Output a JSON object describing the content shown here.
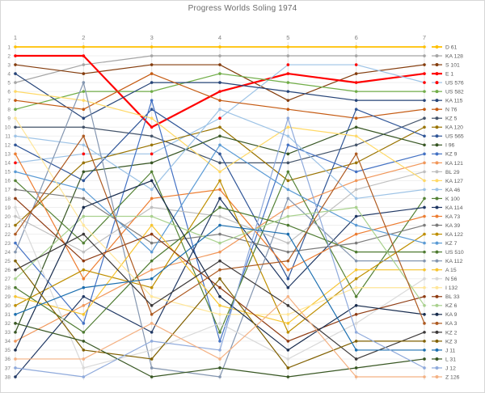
{
  "page": {
    "background_color": "#FFFFFF",
    "border_color": "#D7D7D7",
    "title_color": "#6A6A6A",
    "axis_label_color": "#808080",
    "legend_text_color": "#595959",
    "gridline_color_h": "#EFEFEF",
    "gridline_color_v": "#E4E4E4"
  },
  "chart_data": {
    "type": "line",
    "subtype": "bump-rank-chart",
    "title": "Progress Worlds Soling 1974",
    "xlabel": "",
    "ylabel": "",
    "grid": true,
    "legend_position": "right",
    "x_categories": [
      "1",
      "2",
      "3",
      "4",
      "5",
      "6",
      "7"
    ],
    "y_tick_labels": [
      "1",
      "2",
      "3",
      "4",
      "5",
      "6",
      "7",
      "8",
      "9",
      "10",
      "11",
      "12",
      "13",
      "14",
      "15",
      "16",
      "17",
      "18",
      "19",
      "20",
      "21",
      "22",
      "23",
      "24",
      "25",
      "26",
      "27",
      "28",
      "29",
      "30",
      "31",
      "32",
      "33",
      "34",
      "35",
      "36",
      "37",
      "38"
    ],
    "y_range": [
      1,
      38
    ],
    "y_inverted": true,
    "series": [
      {
        "name": "D 61",
        "color": "#FFC000",
        "width": 1.8,
        "positions": [
          1,
          1,
          1,
          1,
          1,
          1,
          1
        ]
      },
      {
        "name": "KA 128",
        "color": "#A5A5A5",
        "positions": [
          5,
          3,
          2,
          2,
          2,
          2,
          2
        ]
      },
      {
        "name": "S 101",
        "color": "#843C0C",
        "positions": [
          3,
          4,
          3,
          3,
          7,
          4,
          3
        ]
      },
      {
        "name": "E 1",
        "color": "#FF0000",
        "width": 2.2,
        "positions": [
          2,
          2,
          10,
          6,
          4,
          5,
          4
        ]
      },
      {
        "name": "US 576",
        "color": "#9DC3E6",
        "marker_color": "#FF0000",
        "positions": [
          14,
          13,
          13,
          9,
          3,
          3,
          5
        ]
      },
      {
        "name": "US 582",
        "color": "#70AD47",
        "positions": [
          8,
          6,
          6,
          4,
          5,
          6,
          6
        ]
      },
      {
        "name": "KA 115",
        "color": "#264478",
        "positions": [
          4,
          9,
          5,
          5,
          6,
          7,
          7
        ]
      },
      {
        "name": "N 76",
        "color": "#C55A11",
        "positions": [
          7,
          8,
          4,
          7,
          8,
          9,
          8
        ]
      },
      {
        "name": "KZ 5",
        "color": "#44546A",
        "positions": [
          10,
          10,
          11,
          14,
          14,
          12,
          9
        ]
      },
      {
        "name": "KA 120",
        "color": "#997300",
        "positions": [
          21,
          14,
          12,
          10,
          16,
          14,
          10
        ]
      },
      {
        "name": "US 565",
        "color": "#2F5597",
        "positions": [
          12,
          16,
          8,
          13,
          27,
          8,
          11
        ]
      },
      {
        "name": "I 96",
        "color": "#375623",
        "positions": [
          33,
          15,
          14,
          11,
          13,
          10,
          12
        ]
      },
      {
        "name": "KZ 9",
        "color": "#4472C4",
        "positions": [
          23,
          32,
          7,
          34,
          12,
          15,
          13
        ]
      },
      {
        "name": "KA 121",
        "color": "#F1975A",
        "positions": [
          34,
          30,
          26,
          24,
          19,
          16,
          14
        ]
      },
      {
        "name": "BL 29",
        "color": "#BFBFBF",
        "positions": [
          20,
          24,
          19,
          20,
          23,
          17,
          15
        ]
      },
      {
        "name": "KA 127",
        "color": "#FFD966",
        "positions": [
          6,
          7,
          9,
          15,
          10,
          11,
          16
        ]
      },
      {
        "name": "KA 46",
        "color": "#9DC3E6",
        "positions": [
          11,
          12,
          17,
          8,
          11,
          18,
          17
        ]
      },
      {
        "name": "K 100",
        "color": "#548235",
        "positions": [
          16,
          23,
          15,
          33,
          15,
          29,
          18
        ]
      },
      {
        "name": "KA 114",
        "color": "#203864",
        "positions": [
          38,
          29,
          33,
          18,
          28,
          20,
          19
        ]
      },
      {
        "name": "KA 73",
        "color": "#ED7D31",
        "positions": [
          13,
          27,
          18,
          17,
          26,
          22,
          20
        ]
      },
      {
        "name": "KA 39",
        "color": "#7B7B7B",
        "positions": [
          17,
          18,
          23,
          22,
          24,
          23,
          21
        ]
      },
      {
        "name": "KA 122",
        "color": "#BF8F00",
        "positions": [
          30,
          26,
          28,
          16,
          33,
          27,
          22
        ]
      },
      {
        "name": "KZ 7",
        "color": "#5B9BD5",
        "positions": [
          15,
          17,
          24,
          12,
          17,
          21,
          23
        ]
      },
      {
        "name": "US 510",
        "color": "#4E7B31",
        "positions": [
          28,
          33,
          25,
          19,
          21,
          24,
          24
        ]
      },
      {
        "name": "KA 112",
        "color": "#8496B0",
        "positions": [
          24,
          5,
          37,
          38,
          18,
          25,
          25
        ]
      },
      {
        "name": "A 15",
        "color": "#F7C531",
        "positions": [
          29,
          31,
          21,
          30,
          32,
          26,
          26
        ]
      },
      {
        "name": "N 56",
        "color": "#D9D9D9",
        "positions": [
          19,
          37,
          35,
          32,
          36,
          32,
          27
        ]
      },
      {
        "name": "I 132",
        "color": "#FFE699",
        "positions": [
          9,
          21,
          29,
          31,
          31,
          28,
          28
        ]
      },
      {
        "name": "BL 33",
        "color": "#8F3B12",
        "positions": [
          18,
          25,
          22,
          28,
          34,
          31,
          29
        ]
      },
      {
        "name": "KZ 6",
        "color": "#A9D18E",
        "positions": [
          27,
          20,
          20,
          23,
          20,
          19,
          30
        ]
      },
      {
        "name": "KA 9",
        "color": "#172B4D",
        "positions": [
          35,
          19,
          16,
          29,
          35,
          30,
          31
        ]
      },
      {
        "name": "KA 3",
        "color": "#AE5A21",
        "positions": [
          22,
          11,
          31,
          26,
          25,
          13,
          32
        ]
      },
      {
        "name": "KZ 2",
        "color": "#3B3838",
        "positions": [
          26,
          22,
          30,
          25,
          30,
          36,
          33
        ]
      },
      {
        "name": "KZ 3",
        "color": "#806000",
        "positions": [
          25,
          35,
          36,
          27,
          37,
          34,
          34
        ]
      },
      {
        "name": "J 11",
        "color": "#1C6FB0",
        "positions": [
          31,
          28,
          27,
          21,
          22,
          35,
          35
        ]
      },
      {
        "name": "L 31",
        "color": "#385723",
        "positions": [
          32,
          34,
          38,
          37,
          38,
          37,
          36
        ]
      },
      {
        "name": "J 12",
        "color": "#8FAADC",
        "positions": [
          37,
          38,
          34,
          35,
          9,
          33,
          37
        ]
      },
      {
        "name": "Z 126",
        "color": "#F4B183",
        "positions": [
          36,
          36,
          32,
          36,
          29,
          38,
          38
        ]
      }
    ]
  }
}
